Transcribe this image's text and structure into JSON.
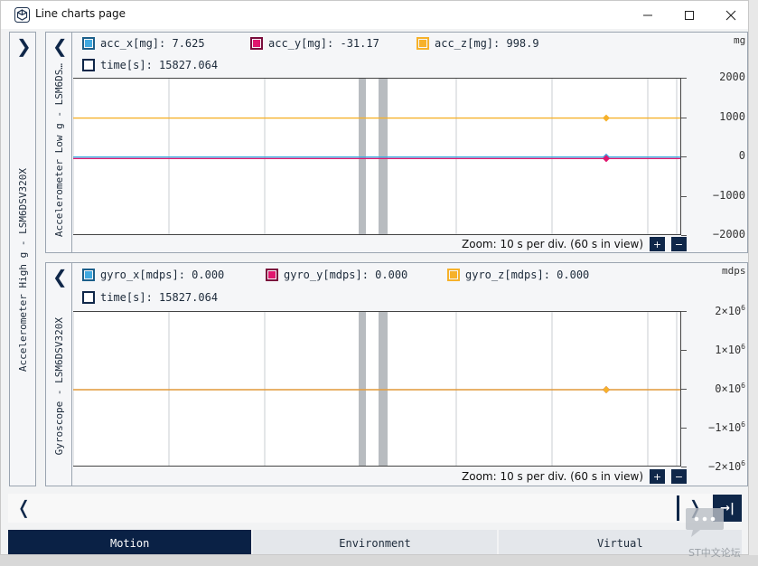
{
  "window": {
    "title": "Line charts page",
    "minimize_icon": "minimize-icon",
    "maximize_icon": "maximize-icon",
    "close_icon": "close-icon"
  },
  "left_panel": {
    "label": "Accelerometer High g - LSM6DSV320X"
  },
  "charts": [
    {
      "sensor_label": "Accelerometer Low g - LSM6DS…",
      "unit": "mg",
      "legend": [
        {
          "name": "acc_x[mg]",
          "value": "7.625",
          "color": "#3fa9e0"
        },
        {
          "name": "acc_y[mg]",
          "value": "-31.17",
          "color": "#e0166e"
        },
        {
          "name": "acc_z[mg]",
          "value": "998.9",
          "color": "#f6b12a"
        },
        {
          "name": "time[s]",
          "value": "15827.064",
          "color": "#0f2749"
        }
      ],
      "yticks": [
        "2000",
        "1000",
        "0",
        "−1000",
        "−2000"
      ],
      "zoom_text": "Zoom: 10 s per div. (60 s in view)"
    },
    {
      "sensor_label": "Gyroscope - LSM6DSV320X",
      "unit": "mdps",
      "legend": [
        {
          "name": "gyro_x[mdps]",
          "value": "0.000",
          "color": "#3fa9e0"
        },
        {
          "name": "gyro_y[mdps]",
          "value": "0.000",
          "color": "#e0166e"
        },
        {
          "name": "gyro_z[mdps]",
          "value": "0.000",
          "color": "#f6b12a"
        },
        {
          "name": "time[s]",
          "value": "15827.064",
          "color": "#0f2749"
        }
      ],
      "yticks": [
        {
          "mantissa": "2×10",
          "exp": "6"
        },
        {
          "mantissa": "1×10",
          "exp": "6"
        },
        {
          "mantissa": "0×10",
          "exp": "6"
        },
        {
          "mantissa": "−1×10",
          "exp": "6"
        },
        {
          "mantissa": "−2×10",
          "exp": "6"
        }
      ],
      "zoom_text": "Zoom: 10 s per div. (60 s in view)"
    }
  ],
  "chart_data": [
    {
      "type": "line",
      "ylabel": "mg",
      "ylim": [
        -2000,
        2000
      ],
      "series": [
        {
          "name": "acc_x[mg]",
          "values": [
            7.625
          ]
        },
        {
          "name": "acc_y[mg]",
          "values": [
            -31.17
          ]
        },
        {
          "name": "acc_z[mg]",
          "values": [
            998.9
          ]
        }
      ]
    },
    {
      "type": "line",
      "ylabel": "mdps",
      "ylim": [
        -2000000,
        2000000
      ],
      "series": [
        {
          "name": "gyro_x[mdps]",
          "values": [
            0
          ]
        },
        {
          "name": "gyro_y[mdps]",
          "values": [
            0
          ]
        },
        {
          "name": "gyro_z[mdps]",
          "values": [
            0
          ]
        }
      ]
    }
  ],
  "zoom_in_label": "+",
  "zoom_out_label": "−",
  "scroll_end_label": "→|",
  "tabs": [
    {
      "label": "Motion",
      "active": true
    },
    {
      "label": "Environment",
      "active": false
    },
    {
      "label": "Virtual",
      "active": false
    }
  ],
  "watermark": "ST中文论坛"
}
